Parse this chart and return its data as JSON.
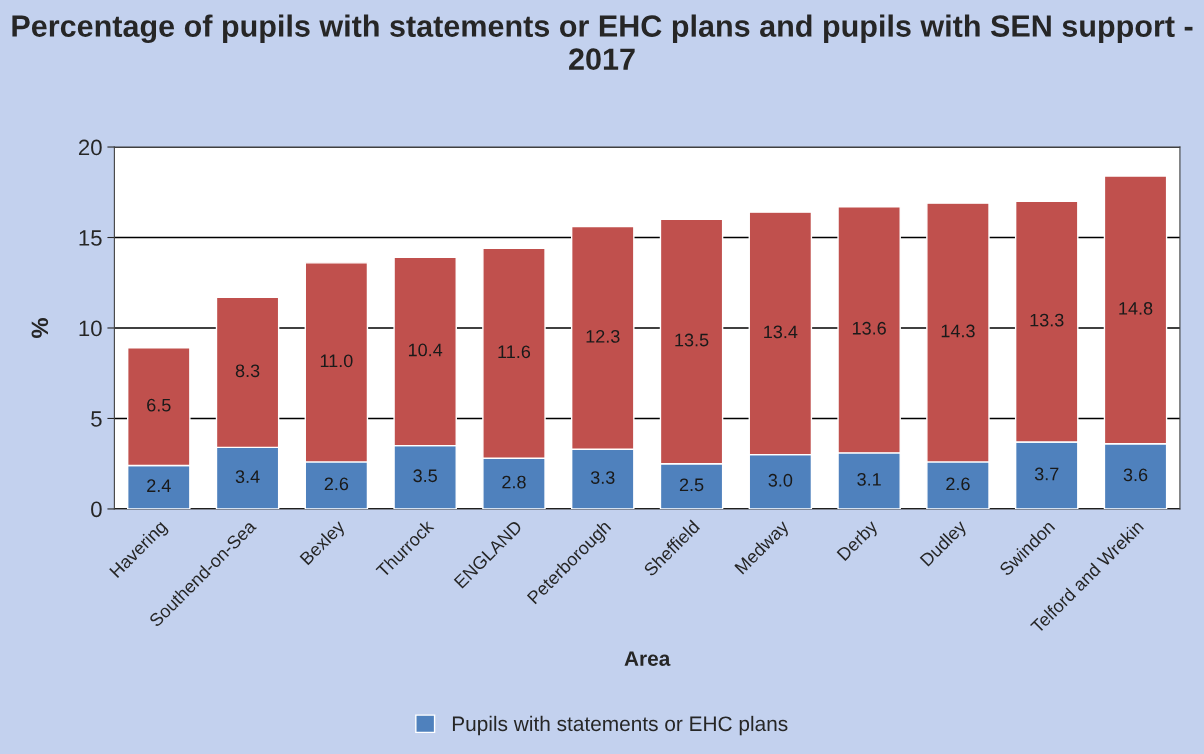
{
  "chart_data": {
    "type": "bar",
    "title": "Percentage of pupils with statements or EHC plans and pupils with SEN support - 2017",
    "xlabel": "Area",
    "ylabel": "%",
    "categories": [
      "Havering",
      "Southend-on-Sea",
      "Bexley",
      "Thurrock",
      "ENGLAND",
      "Peterborough",
      "Sheffield",
      "Medway",
      "Derby",
      "Dudley",
      "Swindon",
      "Telford and Wrekin"
    ],
    "series": [
      {
        "name": "Pupils with statements or EHC plans",
        "color": "#4f81bd",
        "values": [
          2.4,
          3.4,
          2.6,
          3.5,
          2.8,
          3.3,
          2.5,
          3.0,
          3.1,
          2.6,
          3.7,
          3.6
        ],
        "value_labels": [
          "2.4",
          "3.4",
          "2.6",
          "3.5",
          "2.8",
          "3.3",
          "2.5",
          "3.0",
          "3.1",
          "2.6",
          "3.7",
          "3.6"
        ]
      },
      {
        "color": "#c0504d",
        "values": [
          6.5,
          8.3,
          11.0,
          10.4,
          11.6,
          12.3,
          13.5,
          13.4,
          13.6,
          14.3,
          13.3,
          14.8
        ],
        "value_labels": [
          "6.5",
          "8.3",
          "11.0",
          "10.4",
          "11.6",
          "12.3",
          "13.5",
          "13.4",
          "13.6",
          "14.3",
          "13.3",
          "14.8"
        ]
      }
    ],
    "stacked": true,
    "ylim": [
      0,
      20
    ],
    "yticks": [
      0,
      5,
      10,
      15,
      20
    ],
    "grid": "y",
    "legend": "bottom"
  }
}
